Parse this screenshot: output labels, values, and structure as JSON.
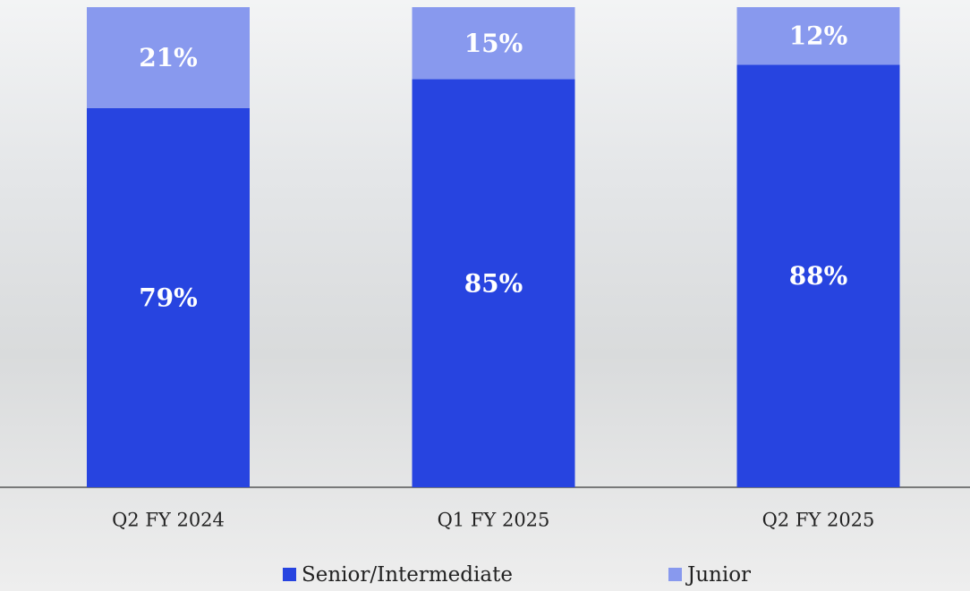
{
  "chart_data": {
    "type": "stacked_bar",
    "categories": [
      "Q2 FY 2024",
      "Q1 FY 2025",
      "Q2 FY 2025"
    ],
    "series": [
      {
        "name": "Senior/Intermediate",
        "color": "#2744e0",
        "values": [
          79,
          85,
          88
        ],
        "value_labels": [
          "79%",
          "85%",
          "88%"
        ]
      },
      {
        "name": "Junior",
        "color": "#8899ee",
        "values": [
          21,
          15,
          12
        ],
        "value_labels": [
          "21%",
          "15%",
          "12%"
        ]
      }
    ]
  }
}
